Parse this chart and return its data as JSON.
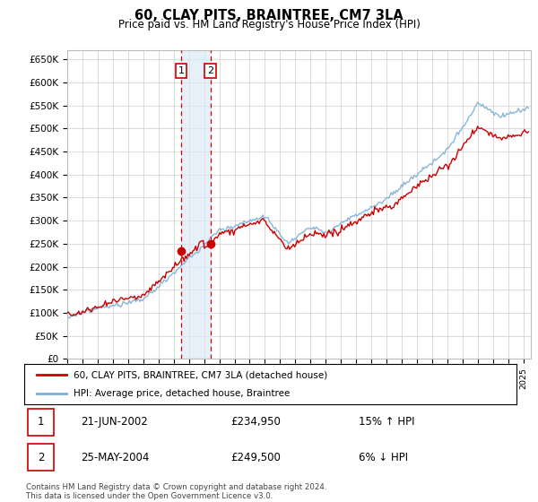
{
  "title": "60, CLAY PITS, BRAINTREE, CM7 3LA",
  "subtitle": "Price paid vs. HM Land Registry's House Price Index (HPI)",
  "ylabel_ticks": [
    "£0",
    "£50K",
    "£100K",
    "£150K",
    "£200K",
    "£250K",
    "£300K",
    "£350K",
    "£400K",
    "£450K",
    "£500K",
    "£550K",
    "£600K",
    "£650K"
  ],
  "ytick_values": [
    0,
    50000,
    100000,
    150000,
    200000,
    250000,
    300000,
    350000,
    400000,
    450000,
    500000,
    550000,
    600000,
    650000
  ],
  "ylim": [
    0,
    670000
  ],
  "hpi_color": "#7bafd4",
  "price_color": "#cc0000",
  "transaction1_date": "21-JUN-2002",
  "transaction1_price": 234950,
  "transaction1_label": "1",
  "transaction1_hpi": "15% ↑ HPI",
  "transaction2_date": "25-MAY-2004",
  "transaction2_price": 249500,
  "transaction2_label": "2",
  "transaction2_hpi": "6% ↓ HPI",
  "legend_label1": "60, CLAY PITS, BRAINTREE, CM7 3LA (detached house)",
  "legend_label2": "HPI: Average price, detached house, Braintree",
  "footnote": "Contains HM Land Registry data © Crown copyright and database right 2024.\nThis data is licensed under the Open Government Licence v3.0.",
  "background_color": "#ffffff",
  "grid_color": "#cccccc",
  "highlight_box_color": "#daeaf7"
}
